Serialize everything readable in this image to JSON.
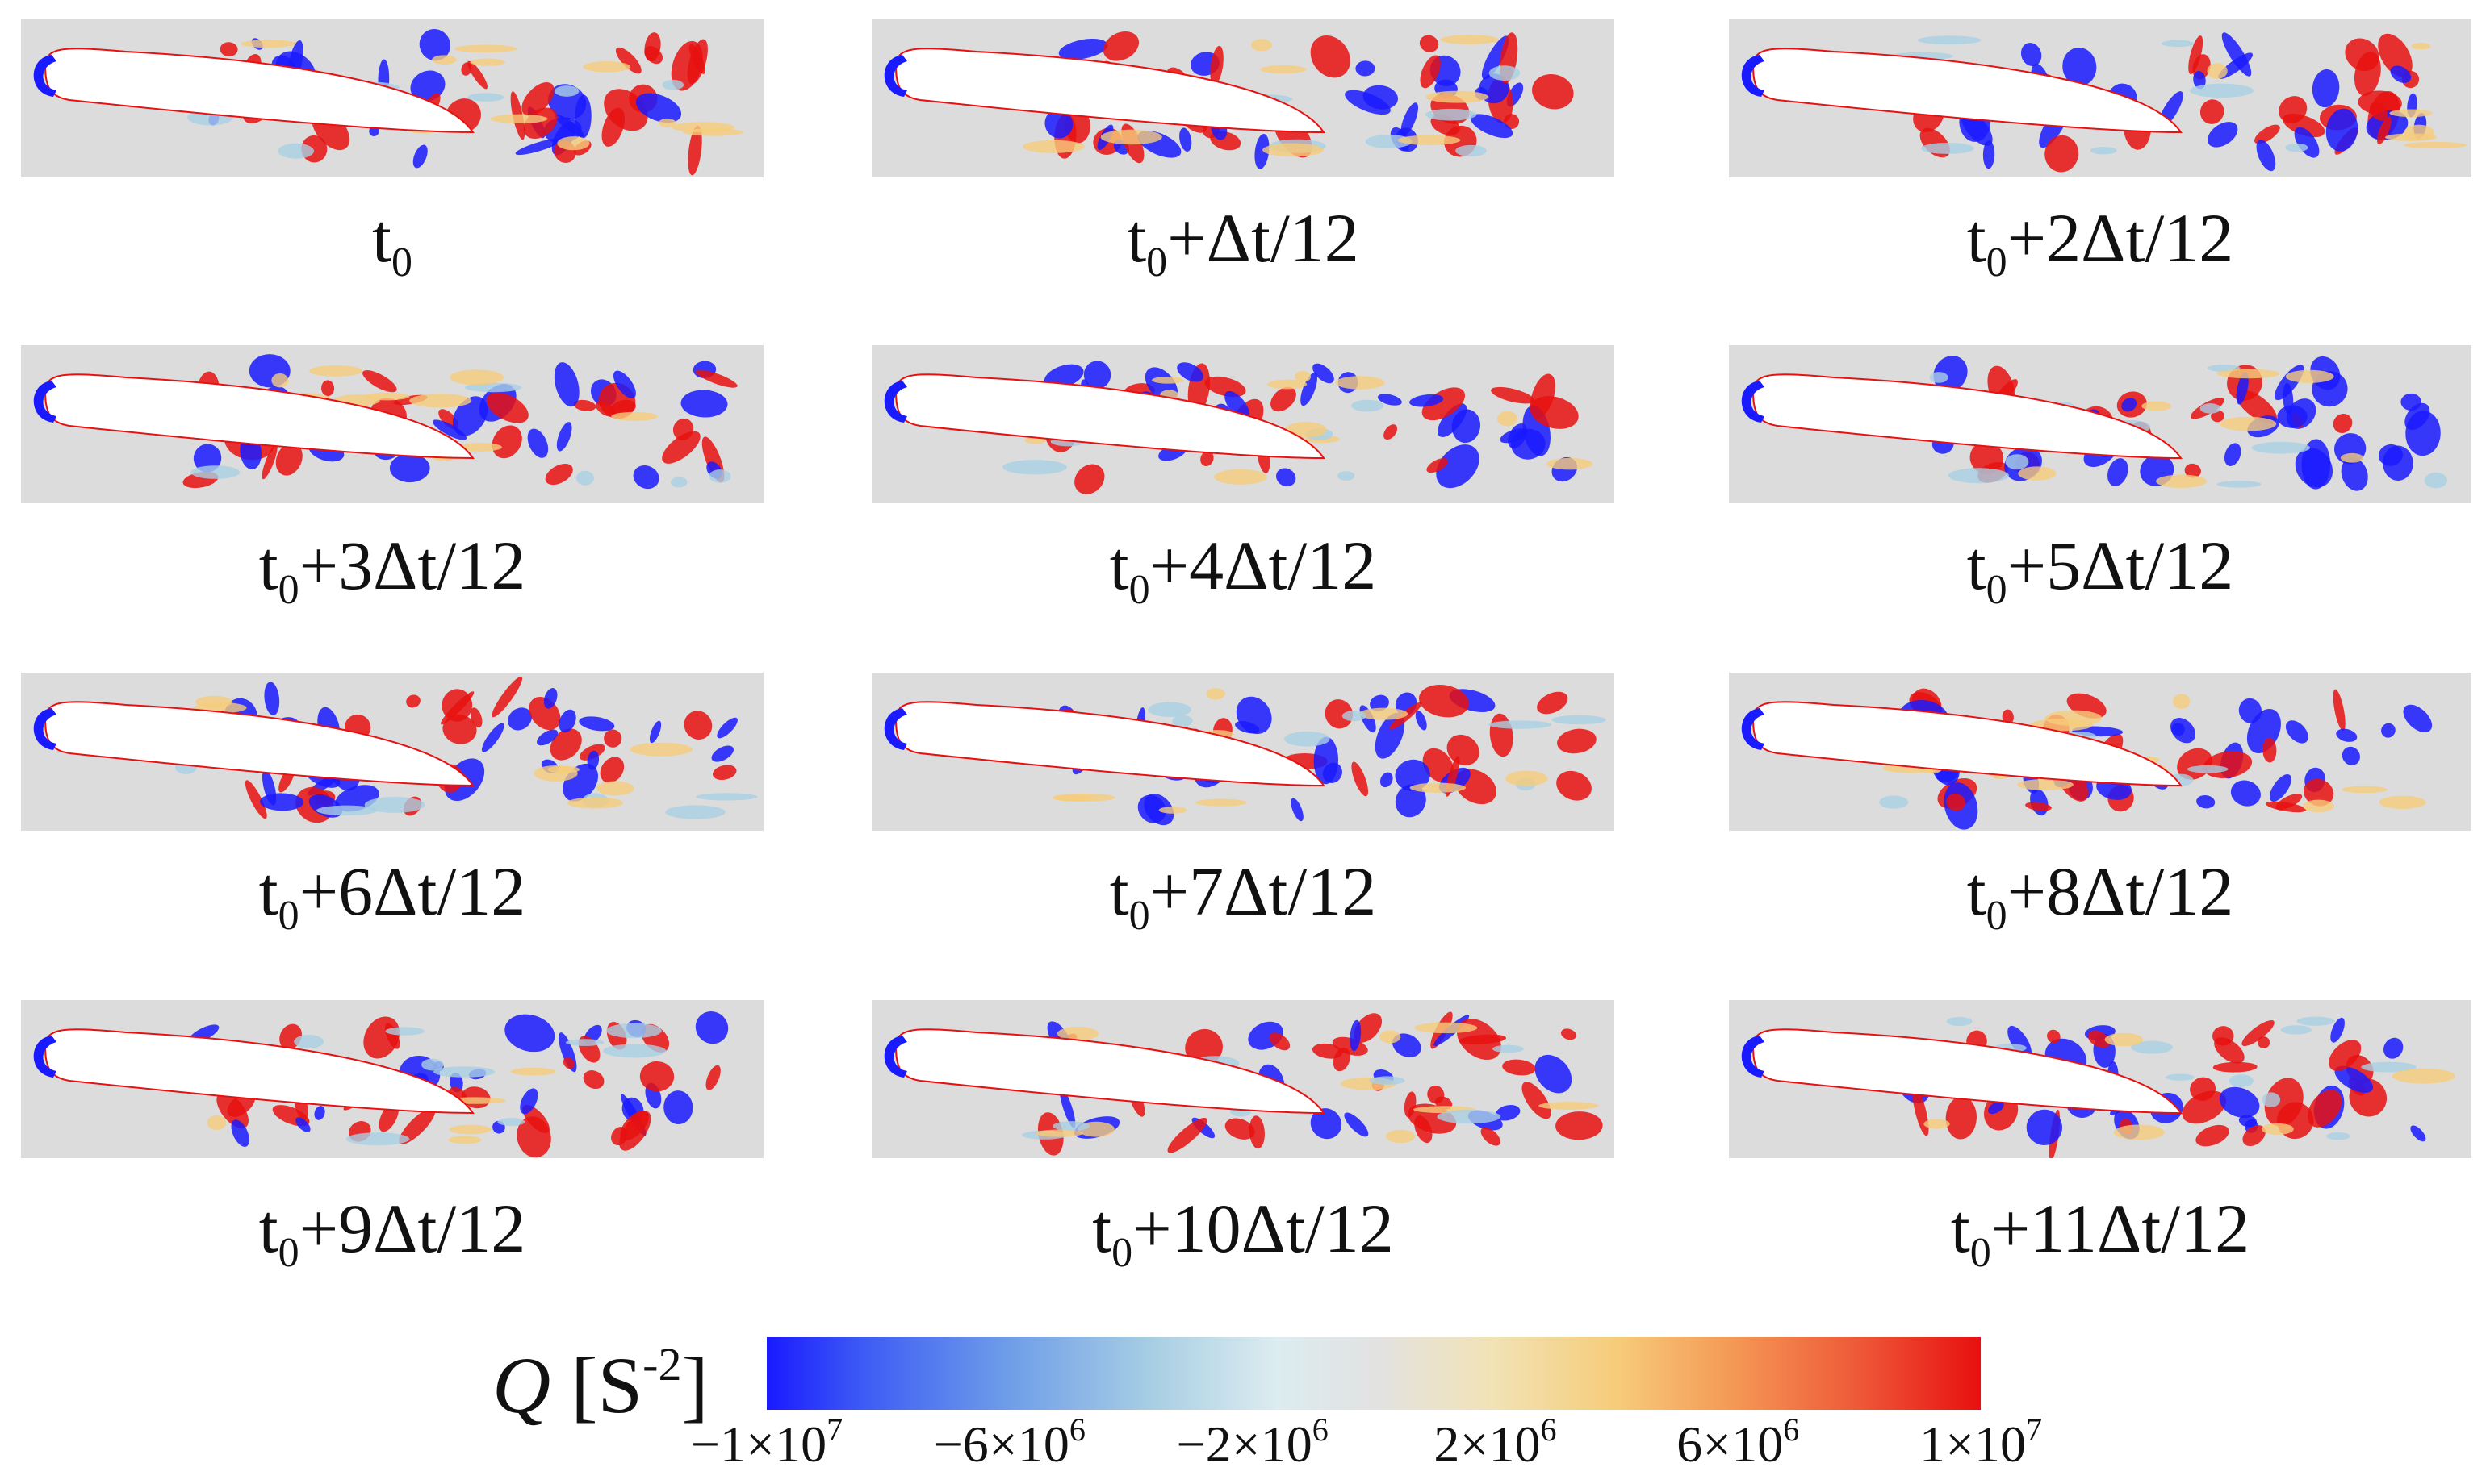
{
  "panels": [
    {
      "caption": {
        "base": "t",
        "sub": "0",
        "rest": ""
      }
    },
    {
      "caption": {
        "base": "t",
        "sub": "0",
        "rest": "+Δt/12"
      }
    },
    {
      "caption": {
        "base": "t",
        "sub": "0",
        "rest": "+2Δt/12"
      }
    },
    {
      "caption": {
        "base": "t",
        "sub": "0",
        "rest": "+3Δt/12"
      }
    },
    {
      "caption": {
        "base": "t",
        "sub": "0",
        "rest": "+4Δt/12"
      }
    },
    {
      "caption": {
        "base": "t",
        "sub": "0",
        "rest": "+5Δt/12"
      }
    },
    {
      "caption": {
        "base": "t",
        "sub": "0",
        "rest": "+6Δt/12"
      }
    },
    {
      "caption": {
        "base": "t",
        "sub": "0",
        "rest": "+7Δt/12"
      }
    },
    {
      "caption": {
        "base": "t",
        "sub": "0",
        "rest": "+8Δt/12"
      }
    },
    {
      "caption": {
        "base": "t",
        "sub": "0",
        "rest": "+9Δt/12"
      }
    },
    {
      "caption": {
        "base": "t",
        "sub": "0",
        "rest": "+10Δt/12"
      }
    },
    {
      "caption": {
        "base": "t",
        "sub": "0",
        "rest": "+11Δt/12"
      }
    }
  ],
  "colorbar": {
    "label_symbol": "Q",
    "label_unit_open": " [S",
    "label_unit_exp": "-2",
    "label_unit_close": "]",
    "range": [
      -10000000,
      10000000
    ],
    "colors": {
      "min": "#1a1aff",
      "mid": "#e2e2e2",
      "max": "#e81010"
    },
    "ticks": [
      {
        "value": -10000000,
        "mantissa": "−1×10",
        "exp": "7"
      },
      {
        "value": -6000000,
        "mantissa": "−6×10",
        "exp": "6"
      },
      {
        "value": -2000000,
        "mantissa": "−2×10",
        "exp": "6"
      },
      {
        "value": 2000000,
        "mantissa": "2×10",
        "exp": "6"
      },
      {
        "value": 6000000,
        "mantissa": "6×10",
        "exp": "6"
      },
      {
        "value": 10000000,
        "mantissa": "1×10",
        "exp": "7"
      }
    ]
  },
  "colors": {
    "background": "#dcdcdc",
    "vortex_positive": "#e81010",
    "vortex_negative": "#1a1aff",
    "airfoil": "#ffffff"
  }
}
